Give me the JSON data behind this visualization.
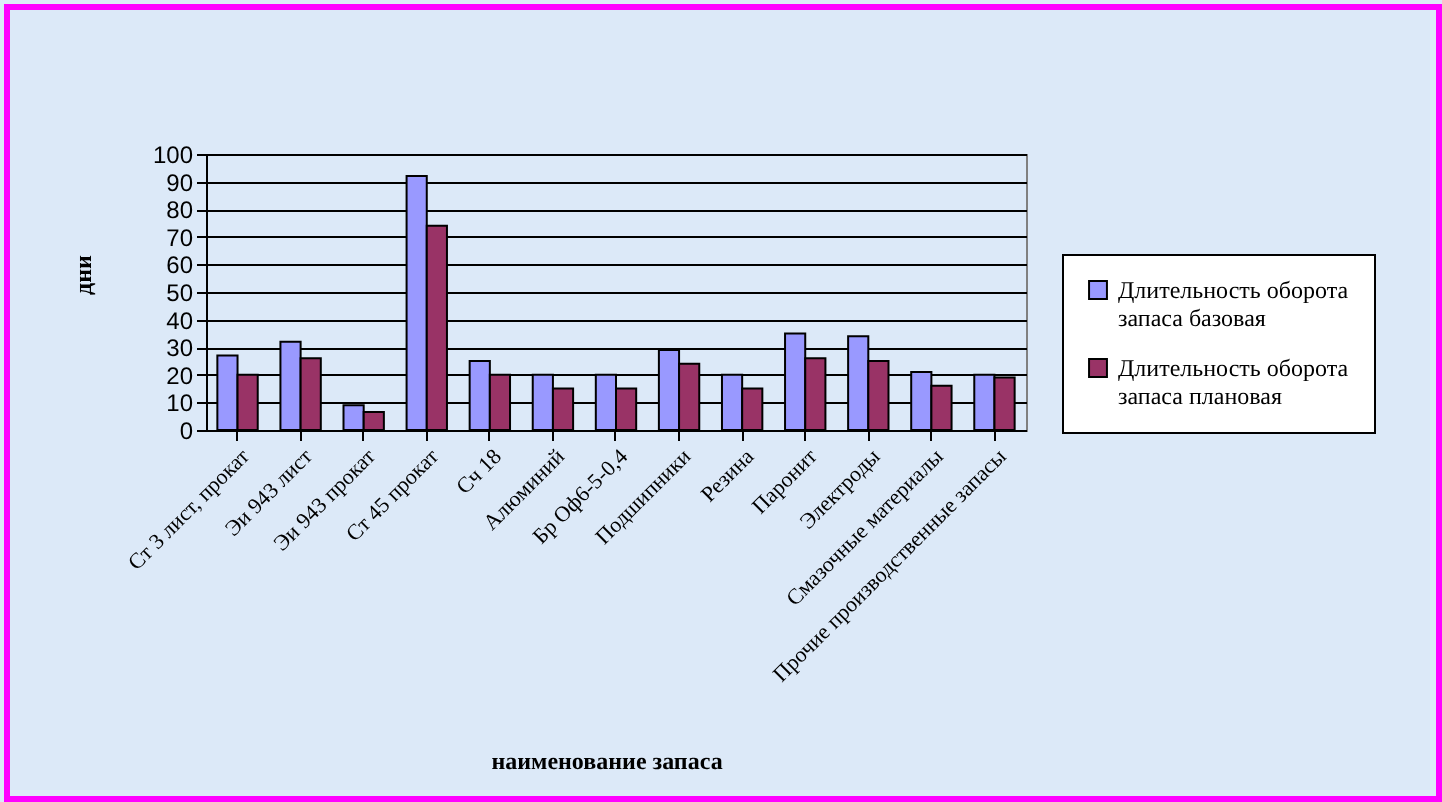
{
  "chart_data": {
    "type": "bar",
    "xlabel": "наименование запаса",
    "ylabel": "дни",
    "categories": [
      "Ст 3 лист, прокат",
      "Эи 943 лист",
      "Эи 943 прокат",
      "Ст 45 прокат",
      "Сч 18",
      "Алюминий",
      "Бр Оф6-5-0,4",
      "Подшипники",
      "Резина",
      "Паронит",
      "Электроды",
      "Смазочные материалы",
      "Прочие производственные запасы"
    ],
    "series": [
      {
        "name": "Длительность оборота запаса базовая",
        "color": "#9999ff",
        "values": [
          27,
          32,
          9,
          92,
          25,
          20,
          20,
          29,
          20,
          35,
          34,
          21,
          20
        ]
      },
      {
        "name": "Длительность оборота запаса плановая",
        "color": "#993366",
        "values": [
          20,
          26,
          6.5,
          74,
          20,
          15,
          15,
          24,
          15,
          26,
          25,
          16,
          19
        ]
      }
    ],
    "ylim": [
      0,
      100
    ],
    "yticks": [
      0,
      10,
      20,
      30,
      40,
      50,
      60,
      70,
      80,
      90,
      100
    ],
    "grid": "y",
    "legend": "right"
  }
}
